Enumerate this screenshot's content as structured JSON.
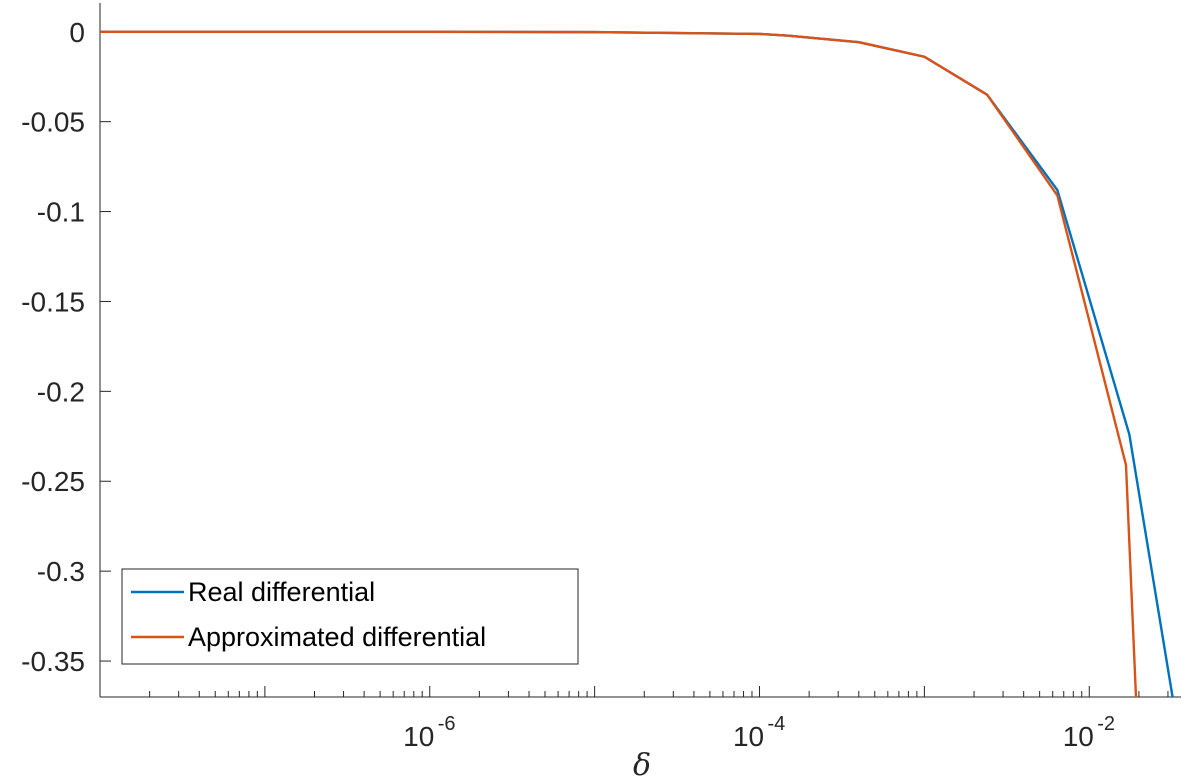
{
  "chart_data": {
    "type": "line",
    "title": "",
    "xlabel": "δ",
    "ylabel": "",
    "xscale": "log",
    "xlim": [
      1e-08,
      0.036
    ],
    "ylim": [
      -0.37,
      0.016
    ],
    "xticks": [
      {
        "value": 1e-06,
        "base": "10",
        "exp": "-6"
      },
      {
        "value": 0.0001,
        "base": "10",
        "exp": "-4"
      },
      {
        "value": 0.01,
        "base": "10",
        "exp": "-2"
      }
    ],
    "yticks": [
      {
        "value": 0,
        "label": "0"
      },
      {
        "value": -0.05,
        "label": "-0.05"
      },
      {
        "value": -0.1,
        "label": "-0.1"
      },
      {
        "value": -0.15,
        "label": "-0.15"
      },
      {
        "value": -0.2,
        "label": "-0.2"
      },
      {
        "value": -0.25,
        "label": "-0.25"
      },
      {
        "value": -0.3,
        "label": "-0.3"
      },
      {
        "value": -0.35,
        "label": "-0.35"
      }
    ],
    "grid": false,
    "legend_position": "bottom-left",
    "series": [
      {
        "name": "Real differential",
        "color": "#0072BD",
        "x": [
          1e-08,
          1e-07,
          1e-06,
          1e-05,
          0.0001,
          0.00015,
          0.0004,
          0.001,
          0.0024,
          0.0064,
          0.0175,
          0.032
        ],
        "y": [
          0,
          0,
          0,
          -0.0002,
          -0.0012,
          -0.0022,
          -0.0058,
          -0.0139,
          -0.035,
          -0.088,
          -0.224,
          -0.37
        ]
      },
      {
        "name": "Approximated differential",
        "color": "#D95319",
        "x": [
          1e-08,
          1e-07,
          1e-06,
          1e-05,
          0.0001,
          0.00015,
          0.0004,
          0.001,
          0.0024,
          0.0064,
          0.0167,
          0.0192
        ],
        "y": [
          0,
          0,
          0,
          -0.0002,
          -0.0012,
          -0.0022,
          -0.0058,
          -0.0139,
          -0.035,
          -0.091,
          -0.241,
          -0.37
        ]
      }
    ]
  }
}
